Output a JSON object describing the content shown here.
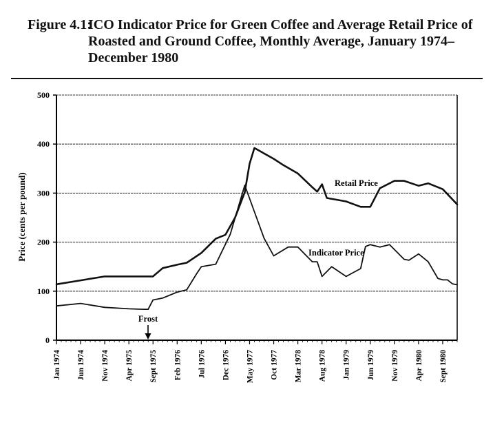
{
  "figure_number": "Figure 4.1:",
  "figure_title": "ICO Indicator Price for Green Coffee and Average Retail Price of Roasted and Ground Coffee, Monthly Average, January 1974–December 1980",
  "chart_data": {
    "type": "line",
    "title": "Figure 4.1: ICO Indicator Price for Green Coffee and Average Retail Price of Roasted and Ground Coffee, Monthly Average, January 1974–December 1980",
    "xlabel": "",
    "ylabel": "Price (cents per pound)",
    "ylim": [
      0,
      500
    ],
    "yticks": [
      0,
      100,
      200,
      300,
      400,
      500
    ],
    "xlim": [
      "Jan 1974",
      "Dec 1980"
    ],
    "x_tick_labels": [
      "Jan 1974",
      "Jun 1974",
      "Nov 1974",
      "Apr 1975",
      "Sept 1975",
      "Feb 1976",
      "Jul 1976",
      "Dec 1976",
      "May 1977",
      "Oct 1977",
      "Mar 1978",
      "Aug 1978",
      "Jan 1979",
      "Jun 1979",
      "Nov 1979",
      "Apr 1980",
      "Sept 1980"
    ],
    "grid": "horizontal",
    "series": [
      {
        "name": "Retail Price",
        "x": [
          "Jan 1974",
          "Jun 1974",
          "Nov 1974",
          "Apr 1975",
          "Sept 1975",
          "Nov 1975",
          "Feb 1976",
          "Apr 1976",
          "Jul 1976",
          "Oct 1976",
          "Dec 1976",
          "Feb 1977",
          "Apr 1977",
          "May 1977",
          "Jun 1977",
          "Oct 1977",
          "Dec 1977",
          "Mar 1978",
          "Jun 1978",
          "Jul 1978",
          "Aug 1978",
          "Sept 1978",
          "Jan 1979",
          "Apr 1979",
          "Jun 1979",
          "Aug 1979",
          "Nov 1979",
          "Jan 1980",
          "Apr 1980",
          "Jun 1980",
          "Sept 1980",
          "Dec 1980"
        ],
        "y": [
          114,
          122,
          130,
          130,
          130,
          147,
          154,
          158,
          178,
          207,
          215,
          250,
          302,
          360,
          392,
          370,
          357,
          340,
          312,
          303,
          318,
          290,
          283,
          272,
          272,
          310,
          325,
          325,
          315,
          320,
          308,
          277
        ]
      },
      {
        "name": "Indicator Price",
        "x": [
          "Jan 1974",
          "Jun 1974",
          "Nov 1974",
          "Apr 1975",
          "Jul 1975",
          "Aug 1975",
          "Sept 1975",
          "Nov 1975",
          "Feb 1976",
          "Apr 1976",
          "Jun 1976",
          "Jul 1976",
          "Oct 1976",
          "Jan 1977",
          "Apr 1977",
          "Jun 1977",
          "Aug 1977",
          "Oct 1977",
          "Jan 1978",
          "Mar 1978",
          "Jun 1978",
          "Jul 1978",
          "Aug 1978",
          "Oct 1978",
          "Jan 1979",
          "Apr 1979",
          "May 1979",
          "Jun 1979",
          "Aug 1979",
          "Oct 1979",
          "Jan 1980",
          "Feb 1980",
          "Apr 1980",
          "Jun 1980",
          "Aug 1980",
          "Sept 1980",
          "Oct 1980",
          "Nov 1980",
          "Dec 1980"
        ],
        "y": [
          70,
          75,
          67,
          64,
          63,
          63,
          82,
          86,
          98,
          103,
          135,
          150,
          155,
          216,
          316,
          262,
          208,
          172,
          190,
          190,
          160,
          160,
          130,
          150,
          130,
          146,
          191,
          195,
          190,
          195,
          165,
          163,
          176,
          160,
          126,
          123,
          123,
          115,
          113
        ]
      }
    ],
    "annotations": [
      "Retail Price",
      "Indicator Price",
      "Frost"
    ]
  }
}
